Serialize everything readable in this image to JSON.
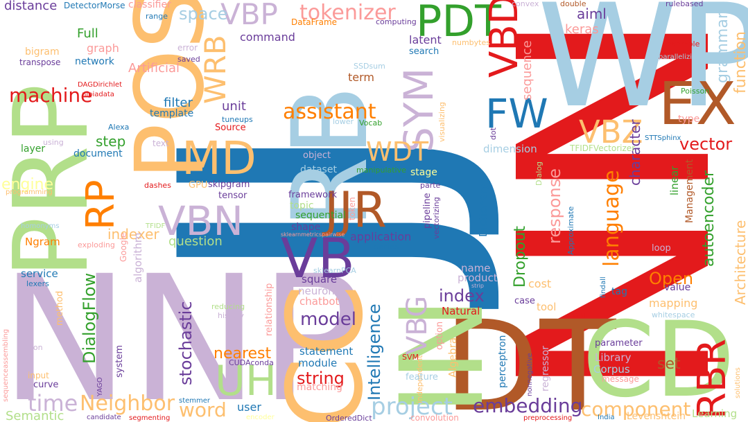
{
  "palette": {
    "blue": "#1f78b4",
    "lightblue": "#a6cee3",
    "green": "#33a02c",
    "lightgreen": "#b2df8a",
    "red": "#e31a1c",
    "pink": "#fb9a99",
    "orange": "#ff7f00",
    "lightorange": "#fdbf6f",
    "purple": "#6a3d9a",
    "lavender": "#cab2d6",
    "brown": "#b15928",
    "yellow": "#ffff99"
  },
  "words": {
    "jj": "JJ",
    "nn": "NN",
    "nnp": "NNP",
    "prp": "PRP",
    "wp": "WP",
    "rb": "RB",
    "pos": "POS",
    "cc": "CC",
    "dt": "DT",
    "cd": "CD",
    "in": "IN",
    "vb": "VB",
    "jjr": "JJR",
    "md": "MD",
    "vbn": "VBN",
    "uh": "UH",
    "ex": "EX",
    "pdt": "PDT",
    "vbd": "VBD",
    "fw": "FW",
    "vbz": "VBZ",
    "sym": "SYM",
    "wdt": "WDT",
    "vbp": "VBP",
    "wrb": "WRB",
    "rp": "RP",
    "rbr": "RBR",
    "vbg": "VBG",
    "tokenizer": "tokenizer",
    "space": "space",
    "assistant": "assistant",
    "machine": "machine",
    "language": "language",
    "embedding": "embedding",
    "component": "component",
    "project": "project",
    "word": "word",
    "Neighbor": "Neighbor",
    "time": "time",
    "DialogFlow": "DialogFlow",
    "nearest": "nearest",
    "stochastic": "stochastic",
    "model": "model",
    "index": "index",
    "Intelligence": "Intelligence",
    "string": "string",
    "vector": "vector",
    "response": "response",
    "Dropout": "Dropout",
    "Open": "Open",
    "autoencoder": "autoencoder",
    "grammar": "grammar",
    "function": "function",
    "Architecture": "Architecture",
    "character": "character",
    "sequence": "sequence",
    "keras": "keras",
    "aiml": "aiml",
    "step": "step",
    "engine": "engine",
    "indexer": "indexer",
    "question": "question",
    "filter": "filter",
    "unit": "unit",
    "Full": "Full",
    "graph": "graph",
    "distance": "distance",
    "command": "command",
    "latent": "latent",
    "search": "search",
    "Artificial": "Artificial",
    "network": "network",
    "bigram": "bigram",
    "transpose": "transpose",
    "DetectorMorse": "DetectorMorse",
    "classifier": "classifier",
    "range": "range",
    "computing": "computing",
    "DataFrame": "DataFrame",
    "convex": "convex",
    "double": "double",
    "rulebased": "rulebased",
    "example": "example",
    "parallelizing": "parallelizing",
    "error": "error",
    "saved": "saved",
    "numbytes": "numbytes",
    "SSDsum": "SSDsum",
    "term": "term",
    "DAGDirichlet": "DAGDirichlet",
    "nlpiadata": "nlpiadata",
    "template": "template",
    "tuneups": "tuneups",
    "Source": "Source",
    "lower": "lower",
    "Vocab": "Vocab",
    "visualizing": "visualizing",
    "dot": "dot",
    "Alexa": "Alexa",
    "using": "using",
    "layer": "layer",
    "text": "text",
    "document": "document",
    "object": "object",
    "dataset": "dataset",
    "manipulative": "manipulative",
    "stage": "stage",
    "dimension": "dimension",
    "TFIDFVectorizer": "TFIDFVectorizer",
    "STTSphinx": "STTSphinx",
    "type": "type",
    "Poisson": "Poisson",
    "dashes": "dashes",
    "GPU": "GPU",
    "skipgram": "skipgram",
    "tensor": "tensor",
    "framework": "framework",
    "token": "token",
    "pipeline": "pipeline",
    "parte": "parte",
    "vectorizing": "vectorizing",
    "Dictionary": "Dictionary",
    "Dialog": "Dialog",
    "linear": "linear",
    "Management": "Management",
    "Approximate": "Approximate",
    "programming": "programming",
    "topic": "topic",
    "sequential": "sequential",
    "shape": "shape",
    "relationship": "relationship",
    "application": "application",
    "series": "series",
    "TFIDF": "TFIDF",
    "Ngram": "Ngram",
    "homonyms": "homonyms",
    "exploding": "exploding",
    "Google": "Google",
    "algorithm": "algorithm",
    "sklearnmetricspairwise": "sklearnmetricspairwise",
    "name": "name",
    "product": "product",
    "strip": "strip",
    "cost": "cost",
    "value": "value",
    "findall": "findall",
    "tag": "tag",
    "loop": "loop",
    "service": "service",
    "lexers": "lexers",
    "method": "method",
    "square": "square",
    "neuron": "neuron",
    "sklearnPCA": "sklearnPCA",
    "chatbot": "chatbot",
    "reducing": "reducing",
    "history": "history",
    "Natural": "Natural",
    "case": "case",
    "tool": "tool",
    "kfold": "kfold",
    "mapping": "mapping",
    "whitespace": "whitespace",
    "system": "system",
    "option": "option",
    "independent": "independent",
    "Algebra": "Algebra",
    "statement": "statement",
    "module": "module",
    "CUDAconda": "CUDAconda",
    "matching": "matching",
    "SVM": "SVM",
    "feature": "feature",
    "perceptron": "perceptron",
    "nonnegative": "nonnegative",
    "regressor": "regressor",
    "parameter": "parameter",
    "Library": "Library",
    "Corpus": "Corpus",
    "message": "message",
    "set": "set",
    "axon": "axon",
    "input": "input",
    "curve": "curve",
    "YAGO": "YAGO",
    "sequenceassembling": "sequenceassembling",
    "Semantic": "Semantic",
    "candidate": "candidate",
    "segmenting": "segmenting",
    "stemmer": "stemmer",
    "user": "user",
    "encoder": "encoder",
    "OrderedDict": "OrderedDict",
    "convolution": "convolution",
    "preprocessing": "preprocessing",
    "India": "India",
    "Levenshtein": "Levenshtein",
    "Learning": "Learning",
    "solutions": "solutions"
  }
}
